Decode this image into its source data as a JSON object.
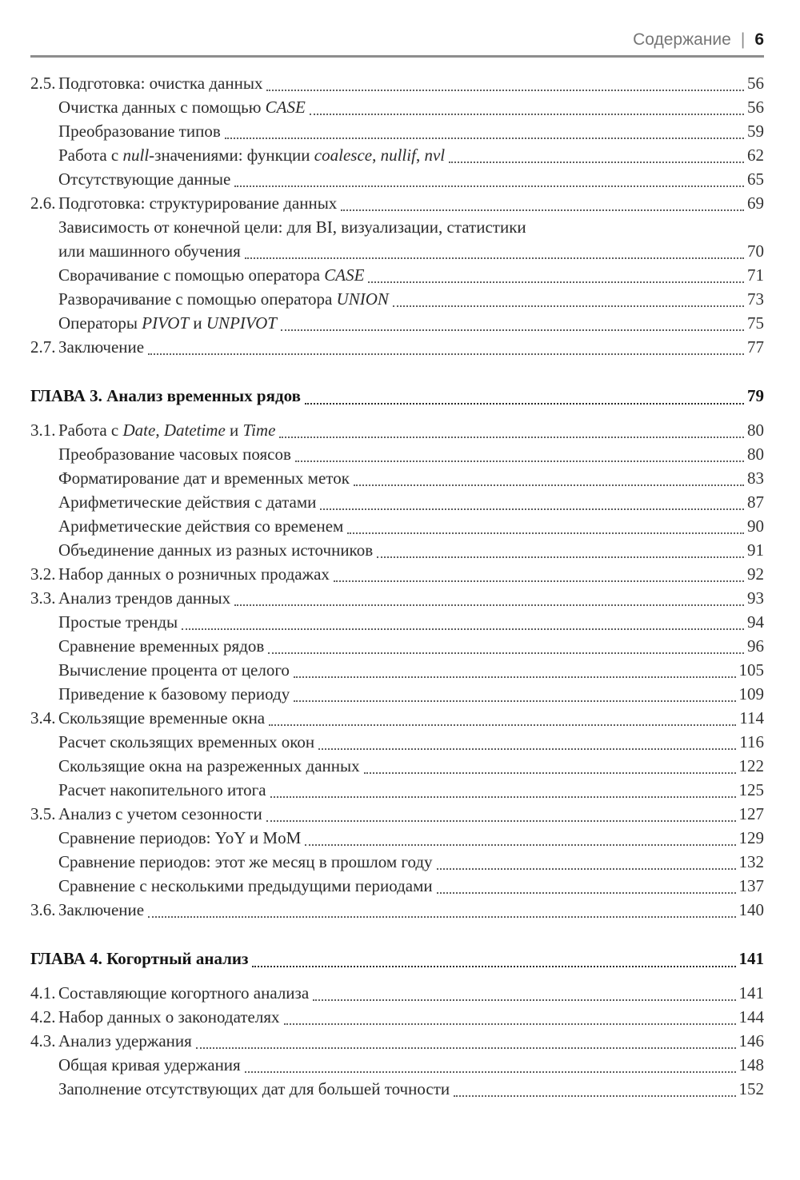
{
  "header": {
    "title": "Содержание",
    "separator": "|",
    "page_number": "6"
  },
  "toc": {
    "rows": [
      {
        "type": "entry",
        "level": 1,
        "number": "2.5.",
        "segments": [
          {
            "t": "Подготовка: очистка данных"
          }
        ],
        "page": "56",
        "dots": true
      },
      {
        "type": "entry",
        "level": 2,
        "segments": [
          {
            "t": "Очистка данных с помощью "
          },
          {
            "t": "CASE",
            "i": true
          }
        ],
        "page": "56",
        "dots": true
      },
      {
        "type": "entry",
        "level": 2,
        "segments": [
          {
            "t": "Преобразование типов"
          }
        ],
        "page": "59",
        "dots": true
      },
      {
        "type": "entry",
        "level": 2,
        "segments": [
          {
            "t": "Работа с "
          },
          {
            "t": "null",
            "i": true
          },
          {
            "t": "-значениями: функции "
          },
          {
            "t": "coalesce",
            "i": true
          },
          {
            "t": ", "
          },
          {
            "t": "nullif",
            "i": true
          },
          {
            "t": ", "
          },
          {
            "t": "nvl",
            "i": true
          }
        ],
        "page": "62",
        "dots": true
      },
      {
        "type": "entry",
        "level": 2,
        "segments": [
          {
            "t": "Отсутствующие данные"
          }
        ],
        "page": "65",
        "dots": true
      },
      {
        "type": "entry",
        "level": 1,
        "number": "2.6.",
        "segments": [
          {
            "t": "Подготовка: структурирование данных"
          }
        ],
        "page": "69",
        "dots": true
      },
      {
        "type": "entry",
        "level": 2,
        "segments": [
          {
            "t": "Зависимость от конечной цели: для BI, визуализации, статистики"
          }
        ],
        "page": null,
        "dots": false
      },
      {
        "type": "entry",
        "level": 2,
        "segments": [
          {
            "t": "или машинного обучения"
          }
        ],
        "page": "70",
        "dots": true
      },
      {
        "type": "entry",
        "level": 2,
        "segments": [
          {
            "t": "Сворачивание с помощью оператора "
          },
          {
            "t": "CASE",
            "i": true
          }
        ],
        "page": "71",
        "dots": true
      },
      {
        "type": "entry",
        "level": 2,
        "segments": [
          {
            "t": "Разворачивание с помощью оператора "
          },
          {
            "t": "UNION",
            "i": true
          }
        ],
        "page": "73",
        "dots": true
      },
      {
        "type": "entry",
        "level": 2,
        "segments": [
          {
            "t": "Операторы "
          },
          {
            "t": "PIVOT",
            "i": true
          },
          {
            "t": " и "
          },
          {
            "t": "UNPIVOT",
            "i": true
          }
        ],
        "page": "75",
        "dots": true
      },
      {
        "type": "entry",
        "level": 1,
        "number": "2.7.",
        "segments": [
          {
            "t": "Заключение"
          }
        ],
        "page": "77",
        "dots": true
      },
      {
        "type": "chapter",
        "segments": [
          {
            "t": "ГЛАВА 3. Анализ временных рядов"
          }
        ],
        "page": "79",
        "dots": true
      },
      {
        "type": "entry",
        "level": 1,
        "number": "3.1.",
        "segments": [
          {
            "t": "Работа с "
          },
          {
            "t": "Date",
            "i": true
          },
          {
            "t": ", "
          },
          {
            "t": "Datetime",
            "i": true
          },
          {
            "t": " и "
          },
          {
            "t": "Time",
            "i": true
          }
        ],
        "page": "80",
        "dots": true
      },
      {
        "type": "entry",
        "level": 2,
        "segments": [
          {
            "t": "Преобразование часовых поясов"
          }
        ],
        "page": "80",
        "dots": true
      },
      {
        "type": "entry",
        "level": 2,
        "segments": [
          {
            "t": "Форматирование дат и временных меток"
          }
        ],
        "page": "83",
        "dots": true
      },
      {
        "type": "entry",
        "level": 2,
        "segments": [
          {
            "t": "Арифметические действия с датами"
          }
        ],
        "page": "87",
        "dots": true
      },
      {
        "type": "entry",
        "level": 2,
        "segments": [
          {
            "t": "Арифметические действия со временем"
          }
        ],
        "page": "90",
        "dots": true
      },
      {
        "type": "entry",
        "level": 2,
        "segments": [
          {
            "t": "Объединение данных из разных источников"
          }
        ],
        "page": "91",
        "dots": true
      },
      {
        "type": "entry",
        "level": 1,
        "number": "3.2.",
        "segments": [
          {
            "t": "Набор данных о розничных продажах"
          }
        ],
        "page": "92",
        "dots": true
      },
      {
        "type": "entry",
        "level": 1,
        "number": "3.3.",
        "segments": [
          {
            "t": "Анализ трендов данных"
          }
        ],
        "page": "93",
        "dots": true
      },
      {
        "type": "entry",
        "level": 2,
        "segments": [
          {
            "t": "Простые тренды"
          }
        ],
        "page": "94",
        "dots": true
      },
      {
        "type": "entry",
        "level": 2,
        "segments": [
          {
            "t": "Сравнение временных рядов"
          }
        ],
        "page": "96",
        "dots": true
      },
      {
        "type": "entry",
        "level": 2,
        "segments": [
          {
            "t": "Вычисление процента от целого"
          }
        ],
        "page": "105",
        "dots": true
      },
      {
        "type": "entry",
        "level": 2,
        "segments": [
          {
            "t": "Приведение к базовому периоду"
          }
        ],
        "page": "109",
        "dots": true
      },
      {
        "type": "entry",
        "level": 1,
        "number": "3.4.",
        "segments": [
          {
            "t": "Скользящие временные окна"
          }
        ],
        "page": "114",
        "dots": true
      },
      {
        "type": "entry",
        "level": 2,
        "segments": [
          {
            "t": "Расчет скользящих временных окон"
          }
        ],
        "page": "116",
        "dots": true
      },
      {
        "type": "entry",
        "level": 2,
        "segments": [
          {
            "t": "Скользящие окна на разреженных данных"
          }
        ],
        "page": "122",
        "dots": true
      },
      {
        "type": "entry",
        "level": 2,
        "segments": [
          {
            "t": "Расчет накопительного итога"
          }
        ],
        "page": "125",
        "dots": true
      },
      {
        "type": "entry",
        "level": 1,
        "number": "3.5.",
        "segments": [
          {
            "t": "Анализ с учетом сезонности"
          }
        ],
        "page": "127",
        "dots": true
      },
      {
        "type": "entry",
        "level": 2,
        "segments": [
          {
            "t": "Сравнение периодов: YoY и MoM"
          }
        ],
        "page": "129",
        "dots": true
      },
      {
        "type": "entry",
        "level": 2,
        "segments": [
          {
            "t": "Сравнение периодов: этот же месяц в прошлом году"
          }
        ],
        "page": "132",
        "dots": true
      },
      {
        "type": "entry",
        "level": 2,
        "segments": [
          {
            "t": "Сравнение с несколькими предыдущими периодами"
          }
        ],
        "page": "137",
        "dots": true
      },
      {
        "type": "entry",
        "level": 1,
        "number": "3.6.",
        "segments": [
          {
            "t": "Заключение"
          }
        ],
        "page": "140",
        "dots": true
      },
      {
        "type": "chapter",
        "segments": [
          {
            "t": "ГЛАВА 4. Когортный анализ"
          }
        ],
        "page": "141",
        "dots": true
      },
      {
        "type": "entry",
        "level": 1,
        "number": "4.1.",
        "segments": [
          {
            "t": "Составляющие когортного анализа"
          }
        ],
        "page": "141",
        "dots": true
      },
      {
        "type": "entry",
        "level": 1,
        "number": "4.2.",
        "segments": [
          {
            "t": "Набор данных о законодателях"
          }
        ],
        "page": "144",
        "dots": true
      },
      {
        "type": "entry",
        "level": 1,
        "number": "4.3.",
        "segments": [
          {
            "t": "Анализ удержания"
          }
        ],
        "page": "146",
        "dots": true
      },
      {
        "type": "entry",
        "level": 2,
        "segments": [
          {
            "t": "Общая кривая удержания"
          }
        ],
        "page": "148",
        "dots": true
      },
      {
        "type": "entry",
        "level": 2,
        "segments": [
          {
            "t": "Заполнение отсутствующих дат для большей точности"
          }
        ],
        "page": "152",
        "dots": true
      }
    ]
  }
}
